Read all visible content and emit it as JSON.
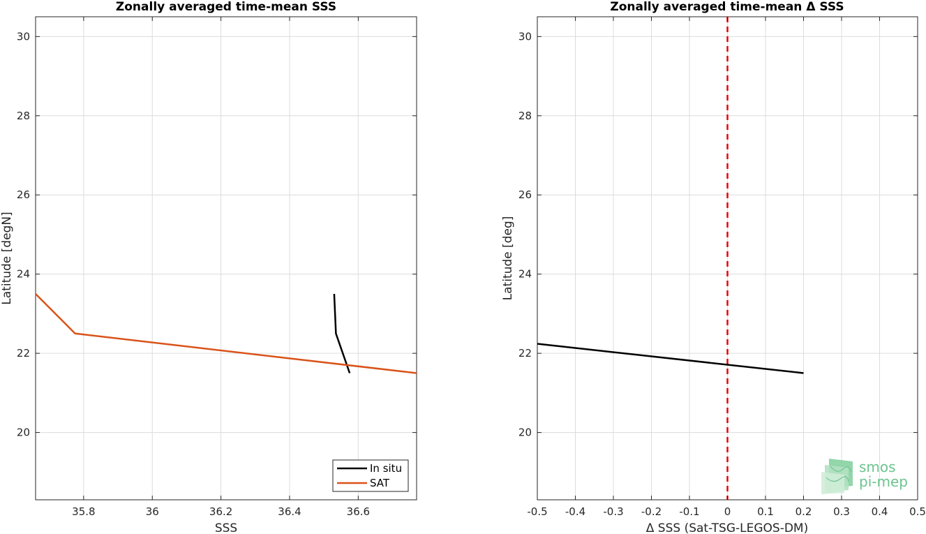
{
  "chart_data": [
    {
      "type": "line",
      "title": "Zonally averaged time-mean SSS",
      "xlabel": "SSS",
      "ylabel": "Latitude [degN]",
      "xlim": [
        35.66,
        36.77
      ],
      "ylim": [
        18.3,
        30.5
      ],
      "xticks": [
        35.8,
        36,
        36.2,
        36.4,
        36.6
      ],
      "xtick_labels": [
        "35.8",
        "36",
        "36.2",
        "36.4",
        "36.6"
      ],
      "yticks": [
        20,
        22,
        24,
        26,
        28,
        30
      ],
      "ytick_labels": [
        "20",
        "22",
        "24",
        "26",
        "28",
        "30"
      ],
      "grid": true,
      "legend_position": "bottom-right",
      "series": [
        {
          "name": "In situ",
          "color": "#000000",
          "x": [
            36.53,
            36.535,
            36.575
          ],
          "y": [
            23.5,
            22.5,
            21.5
          ]
        },
        {
          "name": "SAT",
          "color": "#d95319",
          "x": [
            35.66,
            35.775,
            36.77
          ],
          "y": [
            23.5,
            22.5,
            21.5
          ]
        }
      ]
    },
    {
      "type": "line",
      "title": "Zonally averaged time-mean Δ SSS",
      "xlabel": "Δ SSS (Sat-TSG-LEGOS-DM)",
      "ylabel": "Latitude [deg]",
      "xlim": [
        -0.5,
        0.5
      ],
      "ylim": [
        18.3,
        30.5
      ],
      "xticks": [
        -0.5,
        -0.4,
        -0.3,
        -0.2,
        -0.1,
        0,
        0.1,
        0.2,
        0.3,
        0.4,
        0.5
      ],
      "xtick_labels": [
        "-0.5",
        "-0.4",
        "-0.3",
        "-0.2",
        "-0.1",
        "0",
        "0.1",
        "0.2",
        "0.3",
        "0.4",
        "0.5"
      ],
      "yticks": [
        20,
        22,
        24,
        26,
        28,
        30
      ],
      "ytick_labels": [
        "20",
        "22",
        "24",
        "26",
        "28",
        "30"
      ],
      "grid": true,
      "reference_line": {
        "x": 0,
        "color": "#e8000b",
        "style": "dashed"
      },
      "series": [
        {
          "color": "#000000",
          "x": [
            -0.5,
            0.2
          ],
          "y": [
            22.24,
            21.5
          ]
        }
      ]
    }
  ],
  "logo": {
    "line1": "smos",
    "line2": "pi-mep",
    "color": "#6cc48e"
  }
}
